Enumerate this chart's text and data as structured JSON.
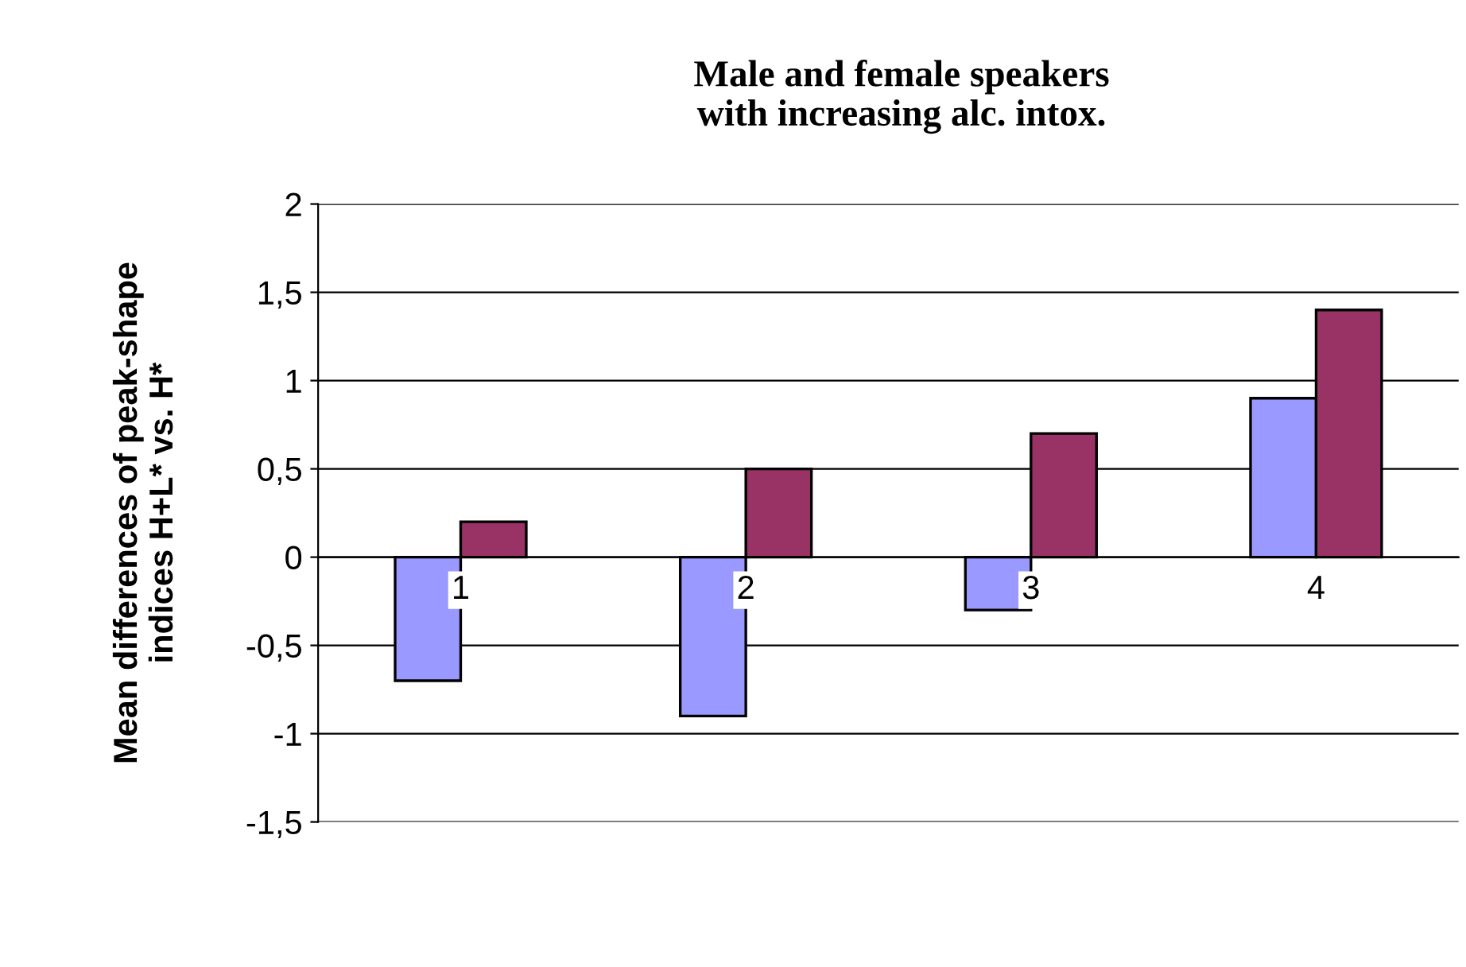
{
  "chart_data": {
    "type": "bar",
    "title": "Male and female speakers\nwith increasing alc. intox.",
    "ylabel": "Mean differences of peak-shape\nindices H+L* vs. H*",
    "categories": [
      "1",
      "2",
      "3",
      "4"
    ],
    "series": [
      {
        "color": "#9999ff",
        "values": [
          -0.7,
          -0.9,
          -0.3,
          0.9
        ]
      },
      {
        "color": "#993366",
        "values": [
          0.2,
          0.5,
          0.7,
          1.4
        ]
      }
    ],
    "ylim": [
      -1.5,
      2
    ],
    "yticks": [
      {
        "value": -1.5,
        "label": "-1,5"
      },
      {
        "value": -1,
        "label": "-1"
      },
      {
        "value": -0.5,
        "label": "-0,5"
      },
      0,
      {
        "value": 0.5,
        "label": "0,5"
      },
      1,
      {
        "value": 1.5,
        "label": "1,5"
      },
      2
    ],
    "grid": "y"
  }
}
